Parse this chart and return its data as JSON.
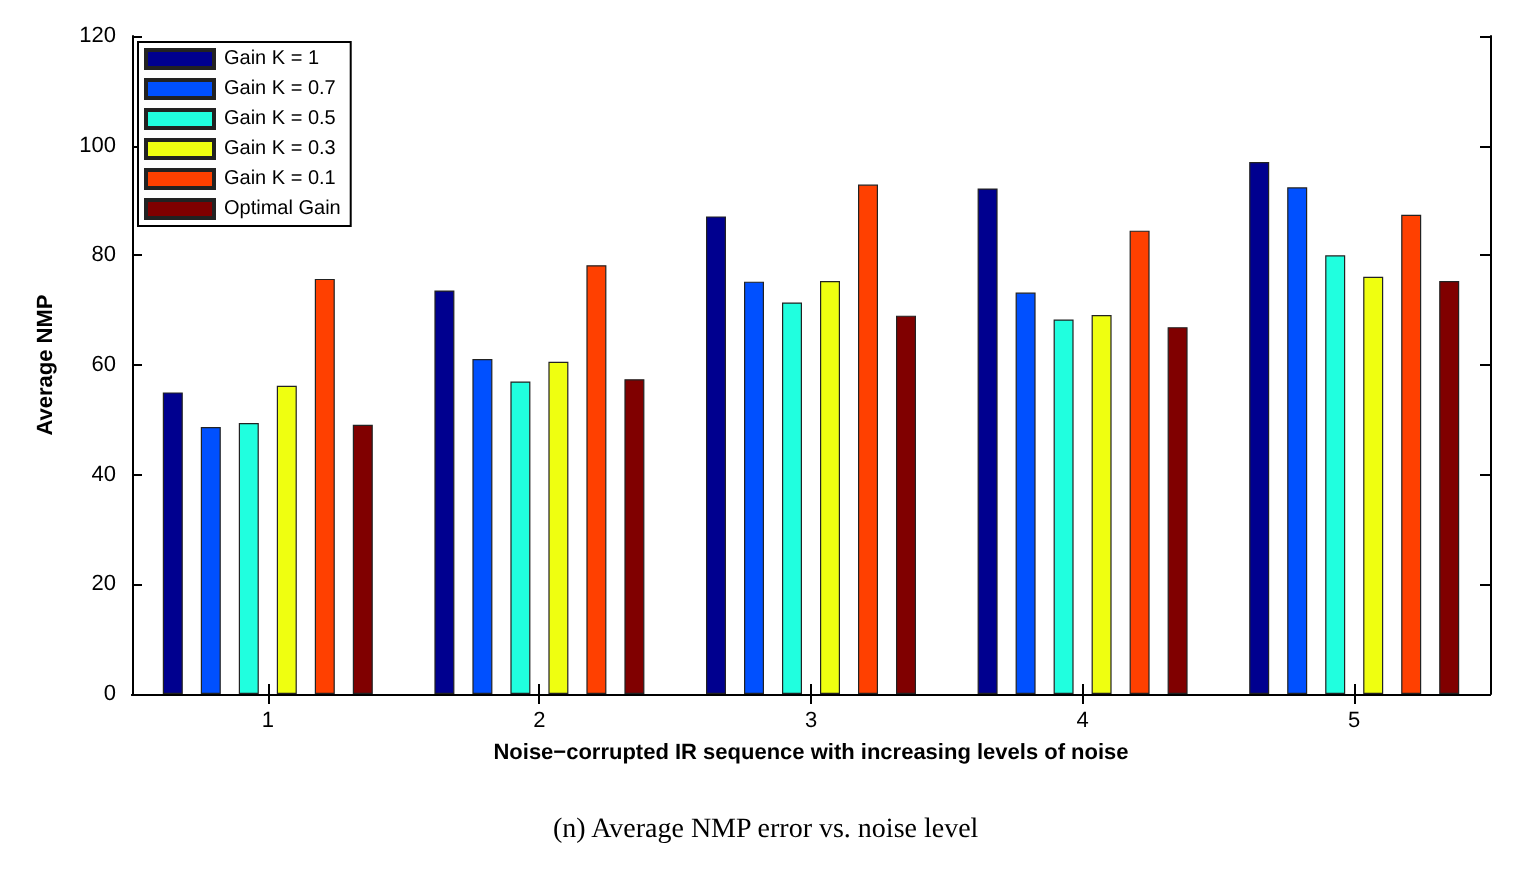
{
  "chart_data": {
    "type": "bar",
    "xlabel": "Noise−corrupted IR sequence with increasing levels of noise",
    "ylabel": "Average NMP",
    "categories": [
      "1",
      "2",
      "3",
      "4",
      "5"
    ],
    "series": [
      {
        "name": "Gain K = 1",
        "color": "#00008f",
        "values": [
          55,
          73.6,
          87.1,
          92.2,
          97
        ]
      },
      {
        "name": "Gain K = 0.7",
        "color": "#0050ff",
        "values": [
          48.7,
          61.1,
          75.2,
          73.2,
          92.4
        ]
      },
      {
        "name": "Gain K = 0.5",
        "color": "#20ffdf",
        "values": [
          49.4,
          57,
          71.4,
          68.3,
          80
        ]
      },
      {
        "name": "Gain K = 0.3",
        "color": "#efff10",
        "values": [
          56.2,
          60.6,
          75.3,
          69.1,
          76.1
        ]
      },
      {
        "name": "Gain K = 0.1",
        "color": "#ff4000",
        "values": [
          75.7,
          78.2,
          92.9,
          84.5,
          87.4
        ]
      },
      {
        "name": "Optimal Gain",
        "color": "#800000",
        "values": [
          49.1,
          57.4,
          69,
          66.9,
          75.3
        ]
      }
    ],
    "ylim": [
      0,
      120
    ],
    "yticks": [
      0,
      20,
      40,
      60,
      80,
      100,
      120
    ],
    "grid": false,
    "legend": "top left",
    "annotations": [
      "(n) Average NMP error vs. noise level"
    ]
  }
}
